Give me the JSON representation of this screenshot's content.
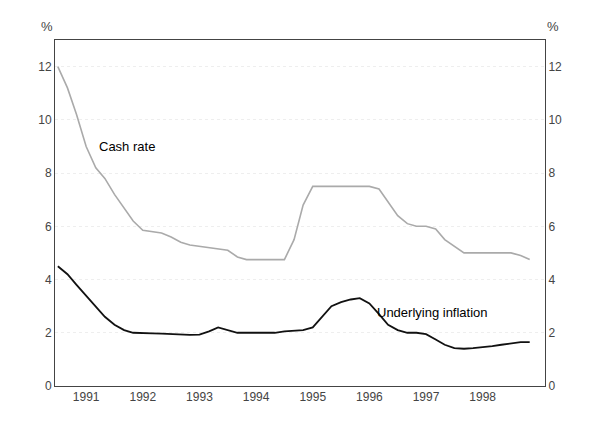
{
  "chart_data": {
    "type": "line",
    "x": [
      1990.5,
      1990.67,
      1990.83,
      1991.0,
      1991.17,
      1991.33,
      1991.5,
      1991.67,
      1991.83,
      1992.0,
      1992.17,
      1992.33,
      1992.5,
      1992.67,
      1992.83,
      1993.0,
      1993.17,
      1993.33,
      1993.5,
      1993.67,
      1993.83,
      1994.0,
      1994.17,
      1994.33,
      1994.5,
      1994.67,
      1994.83,
      1995.0,
      1995.17,
      1995.33,
      1995.5,
      1995.67,
      1995.83,
      1996.0,
      1996.17,
      1996.33,
      1996.5,
      1996.67,
      1996.83,
      1997.0,
      1997.17,
      1997.33,
      1997.5,
      1997.67,
      1997.83,
      1998.0,
      1998.17,
      1998.33,
      1998.5,
      1998.67,
      1998.83
    ],
    "series": [
      {
        "color": "#aaaaaa",
        "values": [
          12.0,
          11.2,
          10.2,
          9.0,
          8.2,
          7.8,
          7.2,
          6.7,
          6.2,
          5.85,
          5.8,
          5.75,
          5.6,
          5.4,
          5.3,
          5.25,
          5.2,
          5.15,
          5.1,
          4.85,
          4.75,
          4.75,
          4.75,
          4.75,
          4.75,
          5.5,
          6.8,
          7.5,
          7.5,
          7.5,
          7.5,
          7.5,
          7.5,
          7.5,
          7.4,
          6.9,
          6.4,
          6.1,
          6.0,
          6.0,
          5.9,
          5.5,
          5.25,
          5.0,
          5.0,
          5.0,
          5.0,
          5.0,
          5.0,
          4.9,
          4.75
        ]
      },
      {
        "color": "#111111",
        "values": [
          4.5,
          4.2,
          3.8,
          3.4,
          3.0,
          2.6,
          2.3,
          2.1,
          2.0,
          2.0,
          1.98,
          1.97,
          1.95,
          1.93,
          1.92,
          1.93,
          2.05,
          2.2,
          2.1,
          2.0,
          2.0,
          2.0,
          2.0,
          2.0,
          2.05,
          2.08,
          2.1,
          2.2,
          2.6,
          3.0,
          3.15,
          3.25,
          3.3,
          3.1,
          2.7,
          2.3,
          2.1,
          2.0,
          2.0,
          1.95,
          1.75,
          1.55,
          1.42,
          1.4,
          1.42,
          1.45,
          1.5,
          1.55,
          1.6,
          1.65,
          1.65
        ]
      }
    ],
    "annotations": [
      {
        "text": "Cash rate",
        "x": 1991.2,
        "y": 9.0
      },
      {
        "text": "Underlying inflation",
        "x": 1996.1,
        "y": 2.75
      }
    ],
    "ylabel": "%",
    "y2label": "%",
    "xlim": [
      1990.45,
      1999.1
    ],
    "xticks": [
      1991,
      1992,
      1993,
      1994,
      1995,
      1996,
      1997,
      1998
    ],
    "ylim": [
      0,
      13
    ],
    "yticks": [
      0,
      2,
      4,
      6,
      8,
      10,
      12
    ],
    "y2lim": [
      0,
      13
    ],
    "y2ticks": [
      0,
      2,
      4,
      6,
      8,
      10,
      12
    ],
    "grid": "y"
  }
}
